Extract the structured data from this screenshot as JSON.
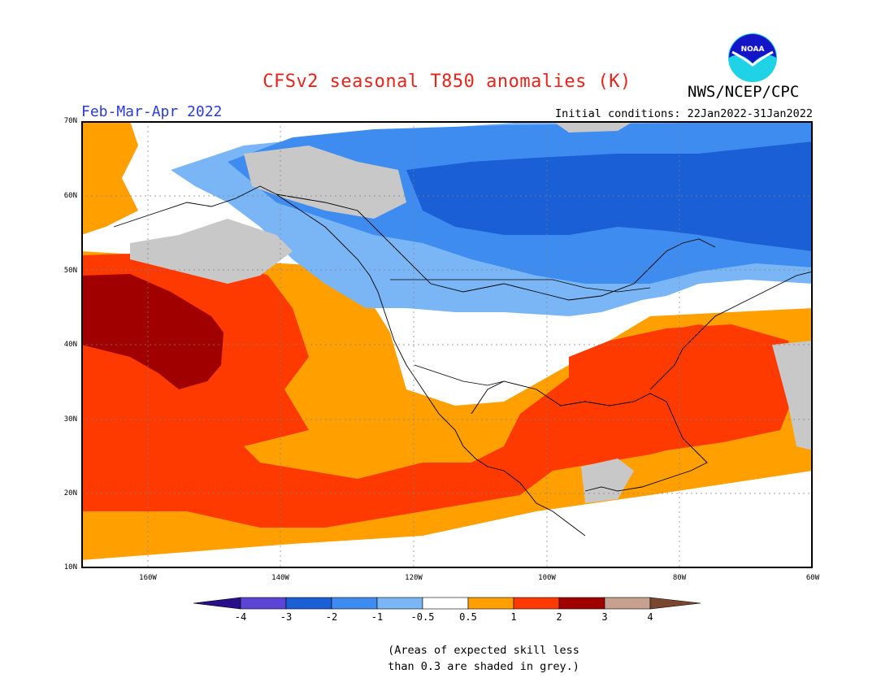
{
  "header": {
    "title": "CFSv2 seasonal T850 anomalies (K)",
    "organization": "NWS/NCEP/CPC",
    "season": "Feb-Mar-Apr 2022",
    "initial_conditions": "Initial conditions: 22Jan2022-31Jan2022",
    "logo_text": "NOAA"
  },
  "map": {
    "lon_range": [
      -170,
      -60
    ],
    "lat_range": [
      10,
      70
    ],
    "lat_labels": [
      "70N",
      "60N",
      "50N",
      "40N",
      "30N",
      "20N",
      "10N"
    ],
    "lon_labels": [
      "160W",
      "140W",
      "120W",
      "100W",
      "80W",
      "60W"
    ],
    "grid": true
  },
  "colorbar": {
    "labels": [
      "-4",
      "-3",
      "-2",
      "-1",
      "-0.5",
      "0.5",
      "1",
      "2",
      "3",
      "4"
    ],
    "colors": {
      "lt_neg4": "#2a0f8a",
      "neg4_neg3": "#5c45d6",
      "neg3_neg2": "#1a5fd6",
      "neg2_neg1": "#3f8cf0",
      "neg1_neg05": "#7ab6f6",
      "neutral": "#ffffff",
      "p05_p1": "#ff9f00",
      "p1_p2": "#ff3a00",
      "p2_p3": "#a00000",
      "p3_p4": "#c8a090",
      "gt_p4": "#7a4630",
      "low_skill": "#c8c8c8"
    }
  },
  "footnote": {
    "line1": "(Areas of expected skill less",
    "line2": "than 0.3 are shaded in grey.)"
  }
}
